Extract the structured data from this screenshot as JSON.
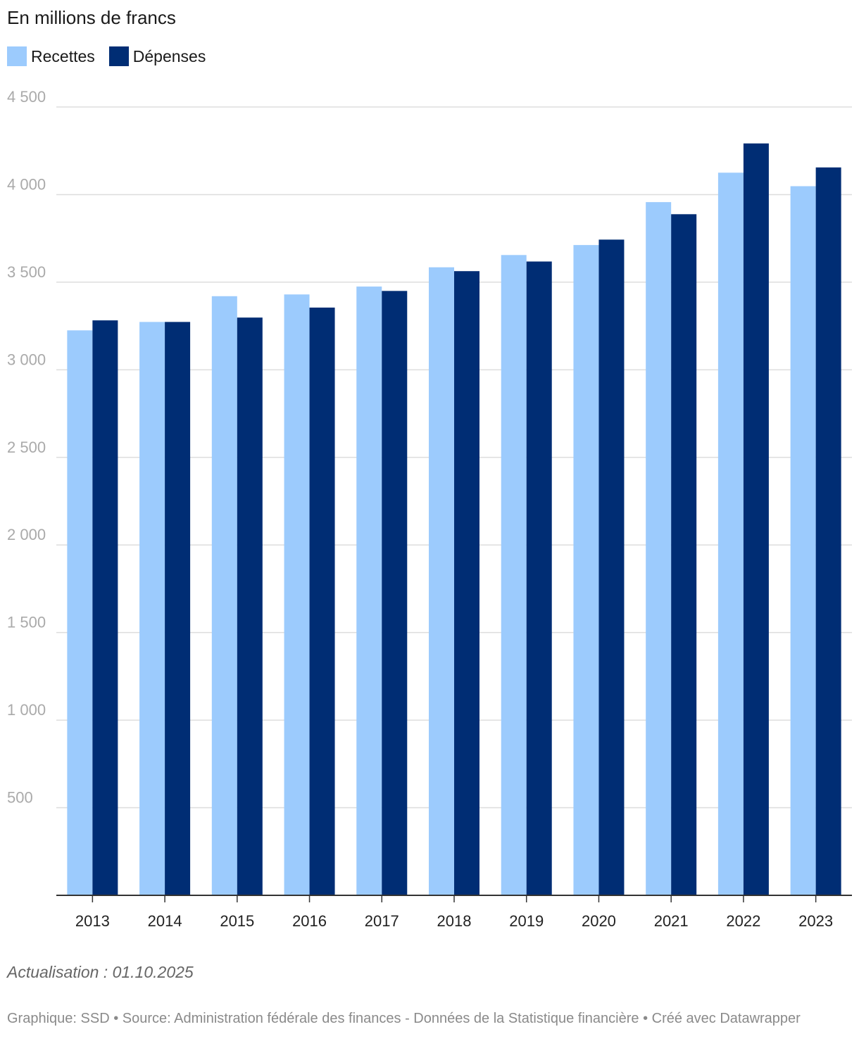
{
  "header": {
    "title": "En millions de francs"
  },
  "footer": {
    "update": "Actualisation : 01.10.2025",
    "source_line": "Graphique: SSD • Source: Administration fédérale des finances - Données de la Statistique financière • Créé avec Datawrapper"
  },
  "chart_data": {
    "type": "bar",
    "title": "En millions de francs",
    "xlabel": "",
    "ylabel": "",
    "categories": [
      "2013",
      "2014",
      "2015",
      "2016",
      "2017",
      "2018",
      "2019",
      "2020",
      "2021",
      "2022",
      "2023"
    ],
    "series": [
      {
        "name": "Recettes",
        "color": "#9ccbfd",
        "values": [
          3225,
          3273,
          3420,
          3430,
          3475,
          3585,
          3655,
          3712,
          3957,
          4125,
          4048
        ]
      },
      {
        "name": "Dépenses",
        "color": "#002d74",
        "values": [
          3282,
          3273,
          3298,
          3355,
          3450,
          3563,
          3618,
          3743,
          3888,
          4292,
          4155
        ]
      }
    ],
    "ylim": [
      0,
      4500
    ],
    "yticks": [
      500,
      1000,
      1500,
      2000,
      2500,
      3000,
      3500,
      4000,
      4500
    ],
    "ytick_labels": [
      "500",
      "1 000",
      "1 500",
      "2 000",
      "2 500",
      "3 000",
      "3 500",
      "4 000",
      "4 500"
    ],
    "grid": true,
    "legend_position": "top-left"
  }
}
